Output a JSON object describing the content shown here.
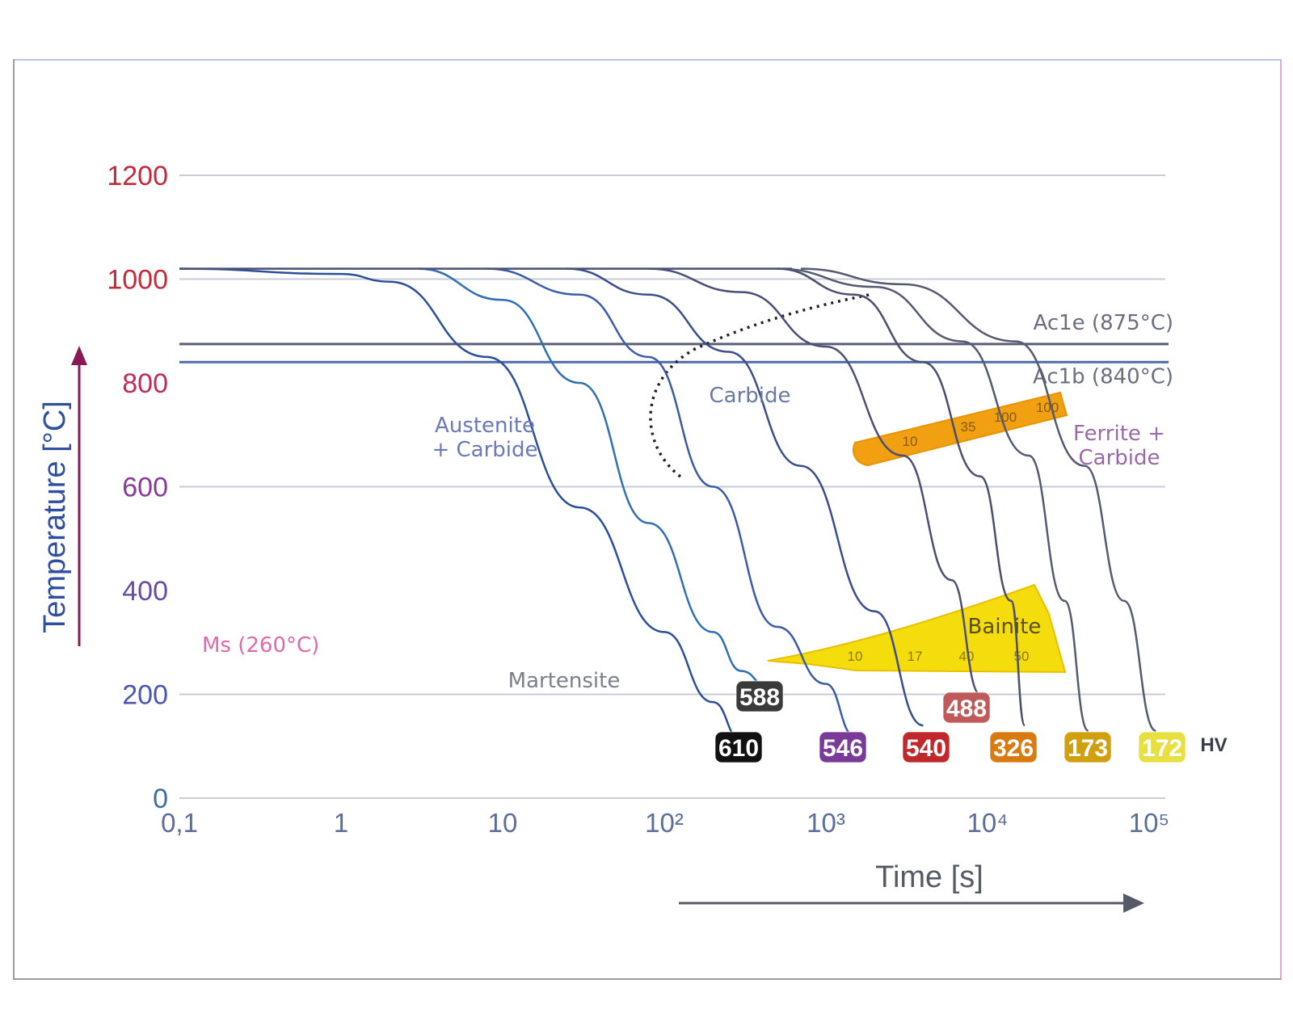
{
  "chart_data": {
    "type": "line",
    "x_scale": "log",
    "xlim": [
      0.1,
      100000
    ],
    "ylim": [
      0,
      1200
    ],
    "xlabel": "Time [s]",
    "ylabel": "Temperature [°C]",
    "x_ticks": [
      "0,1",
      "1",
      "10",
      "10²",
      "10³",
      "10⁴",
      "10⁵"
    ],
    "x_tick_values": [
      0.1,
      1,
      10,
      100,
      1000,
      10000,
      100000
    ],
    "y_ticks": [
      "0",
      "200",
      "400",
      "600",
      "800",
      "1000",
      "1200"
    ],
    "y_tick_values": [
      0,
      200,
      400,
      600,
      800,
      1000,
      1200
    ],
    "y_tick_colors": [
      "#3a6ea5",
      "#4a55b5",
      "#6a4aa8",
      "#8a3a9a",
      "#c22a5a",
      "#c8283a",
      "#c8283a"
    ],
    "grid": true,
    "hlines": [
      {
        "label": "Ac1e (875°C)",
        "y": 875
      },
      {
        "label": "Ac1b (840°C)",
        "y": 840
      },
      {
        "label": "Ms (260°C)",
        "y": 260
      }
    ],
    "regions": [
      {
        "label": "Austenite\n+ Carbide"
      },
      {
        "label": "Carbide"
      },
      {
        "label": "Ferrite +\nCarbide"
      },
      {
        "label": "Bainite"
      },
      {
        "label": "Martensite"
      }
    ],
    "bainite_percent": [
      "10",
      "17",
      "40",
      "50"
    ],
    "ferrite_percent": [
      "10",
      "35",
      "100",
      "100"
    ],
    "hardness_unit": "HV",
    "series": [
      {
        "hardness": "610",
        "color": "#111111",
        "points": [
          [
            0.1,
            1020
          ],
          [
            1,
            1010
          ],
          [
            2,
            995
          ],
          [
            8,
            850
          ],
          [
            30,
            560
          ],
          [
            100,
            320
          ],
          [
            200,
            185
          ],
          [
            300,
            110
          ]
        ]
      },
      {
        "hardness": "588",
        "color": "#3a3a3a",
        "points": [
          [
            3,
            1020
          ],
          [
            10,
            960
          ],
          [
            30,
            800
          ],
          [
            80,
            530
          ],
          [
            200,
            320
          ],
          [
            300,
            245
          ],
          [
            450,
            210
          ]
        ]
      },
      {
        "hardness": "546",
        "color": "#7a3a9a",
        "points": [
          [
            8,
            1020
          ],
          [
            30,
            970
          ],
          [
            80,
            850
          ],
          [
            200,
            600
          ],
          [
            500,
            330
          ],
          [
            1000,
            220
          ],
          [
            1500,
            120
          ]
        ]
      },
      {
        "hardness": "540",
        "color": "#c0282a",
        "points": [
          [
            25,
            1020
          ],
          [
            80,
            970
          ],
          [
            250,
            860
          ],
          [
            700,
            640
          ],
          [
            2000,
            360
          ],
          [
            4000,
            140
          ]
        ]
      },
      {
        "hardness": "488",
        "color": "#c05a5a",
        "points": [
          [
            80,
            1020
          ],
          [
            300,
            975
          ],
          [
            1000,
            870
          ],
          [
            3000,
            660
          ],
          [
            6000,
            420
          ],
          [
            9000,
            200
          ]
        ]
      },
      {
        "hardness": "326",
        "color": "#d87a10",
        "points": [
          [
            500,
            1020
          ],
          [
            1500,
            970
          ],
          [
            4000,
            840
          ],
          [
            9000,
            620
          ],
          [
            14000,
            380
          ],
          [
            17000,
            140
          ]
        ]
      },
      {
        "hardness": "173",
        "color": "#d0a010",
        "points": [
          [
            500,
            1020
          ],
          [
            2000,
            985
          ],
          [
            7000,
            880
          ],
          [
            18000,
            660
          ],
          [
            30000,
            380
          ],
          [
            42000,
            130
          ]
        ]
      },
      {
        "hardness": "172",
        "color": "#e8e040",
        "points": [
          [
            700,
            1020
          ],
          [
            3000,
            990
          ],
          [
            15000,
            880
          ],
          [
            40000,
            640
          ],
          [
            70000,
            380
          ],
          [
            110000,
            130
          ]
        ]
      }
    ],
    "curve_colors": [
      "#2e4fa0",
      "#2f77b8",
      "#5b6cb2",
      "#4a4e78"
    ]
  }
}
